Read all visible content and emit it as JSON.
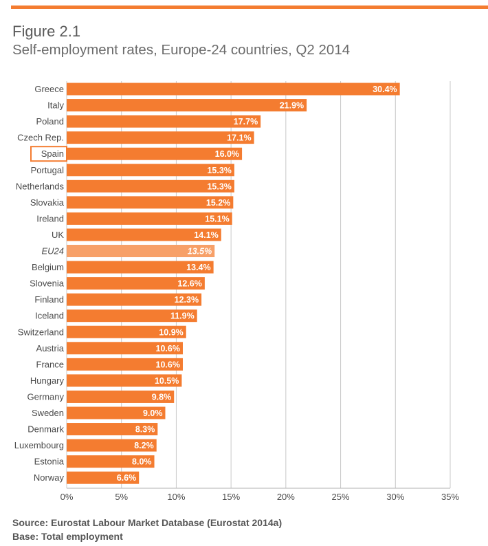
{
  "header": {
    "figure_number": "Figure 2.1",
    "figure_title": "Self-employment rates, Europe-24 countries, Q2 2014"
  },
  "colors": {
    "accent": "#f47c30",
    "bar": "#f47c30",
    "bar_average": "#f7a068",
    "grid": "#c8c8c8",
    "label": "#4a4a4a",
    "highlight_box": "#f47c30"
  },
  "chart_data": {
    "type": "bar",
    "orientation": "horizontal",
    "title": "Self-employment rates, Europe-24 countries, Q2 2014",
    "xlabel": "",
    "ylabel": "",
    "xlim": [
      0,
      35
    ],
    "grid": true,
    "x_ticks": [
      "0%",
      "5%",
      "10%",
      "15%",
      "20%",
      "25%",
      "30%",
      "35%"
    ],
    "categories": [
      "Greece",
      "Italy",
      "Poland",
      "Czech Rep.",
      "Spain",
      "Portugal",
      "Netherlands",
      "Slovakia",
      "Ireland",
      "UK",
      "EU24",
      "Belgium",
      "Slovenia",
      "Finland",
      "Iceland",
      "Switzerland",
      "Austria",
      "France",
      "Hungary",
      "Germany",
      "Sweden",
      "Denmark",
      "Luxembourg",
      "Estonia",
      "Norway"
    ],
    "values": [
      30.4,
      21.9,
      17.7,
      17.1,
      16.0,
      15.3,
      15.3,
      15.2,
      15.1,
      14.1,
      13.5,
      13.4,
      12.6,
      12.3,
      11.9,
      10.9,
      10.6,
      10.6,
      10.5,
      9.8,
      9.0,
      8.3,
      8.2,
      8.0,
      6.6
    ],
    "value_labels": [
      "30.4%",
      "21.9%",
      "17.7%",
      "17.1%",
      "16.0%",
      "15.3%",
      "15.3%",
      "15.2%",
      "15.1%",
      "14.1%",
      "13.5%",
      "13.4%",
      "12.6%",
      "12.3%",
      "11.9%",
      "10.9%",
      "10.6%",
      "10.6%",
      "10.5%",
      "9.8%",
      "9.0%",
      "8.3%",
      "8.2%",
      "8.0%",
      "6.6%"
    ],
    "average_category": "EU24",
    "highlighted_category": "Spain"
  },
  "footer": {
    "source": "Source: Eurostat Labour Market Database (Eurostat 2014a)",
    "base": "Base: Total employment"
  }
}
